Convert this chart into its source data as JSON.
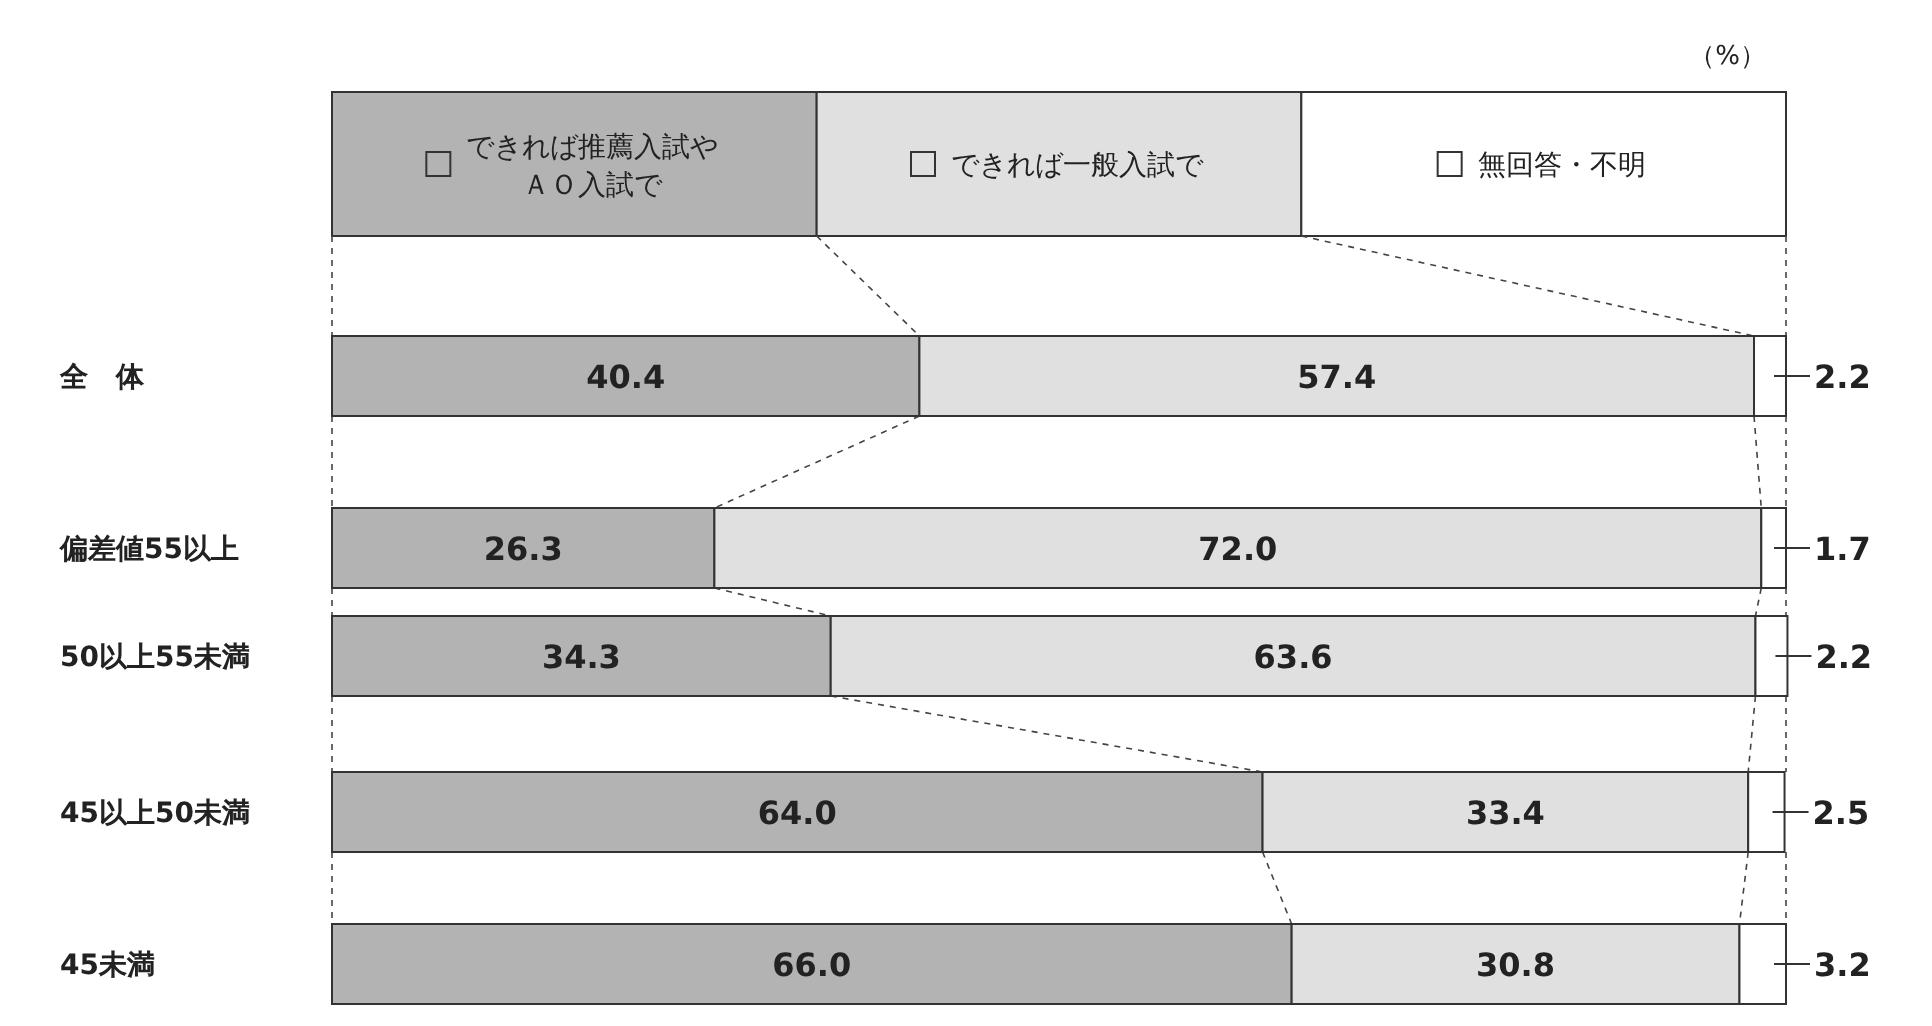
{
  "chart_data": {
    "type": "bar",
    "orientation": "horizontal",
    "stacked": true,
    "legend": "top",
    "xlim": [
      0,
      100
    ],
    "tick_labels": "y",
    "categories": [
      "全　体",
      "偏差値55以上",
      "50以上55未満",
      "45以上50未満",
      "45未満"
    ],
    "series": [
      {
        "name": "できれば推薦入試やＡＯ入試で",
        "color": "#b3b3b3",
        "values": [
          40.4,
          26.3,
          34.3,
          64.0,
          66.0
        ],
        "value_labels": [
          "40.4",
          "26.3",
          "34.3",
          "64.0",
          "66.0"
        ]
      },
      {
        "name": "できれば一般入試で",
        "color": "#e0e0e0",
        "values": [
          57.4,
          72.0,
          63.6,
          33.4,
          30.8
        ],
        "value_labels": [
          "57.4",
          "72.0",
          "63.6",
          "33.4",
          "30.8"
        ]
      },
      {
        "name": "無回答・不明",
        "color": "#ffffff",
        "values": [
          2.2,
          1.7,
          2.2,
          2.5,
          3.2
        ],
        "value_labels": [
          "2.2",
          "1.7",
          "2.2",
          "2.5",
          "3.2"
        ]
      }
    ],
    "annotations": [
      "（%）"
    ]
  }
}
